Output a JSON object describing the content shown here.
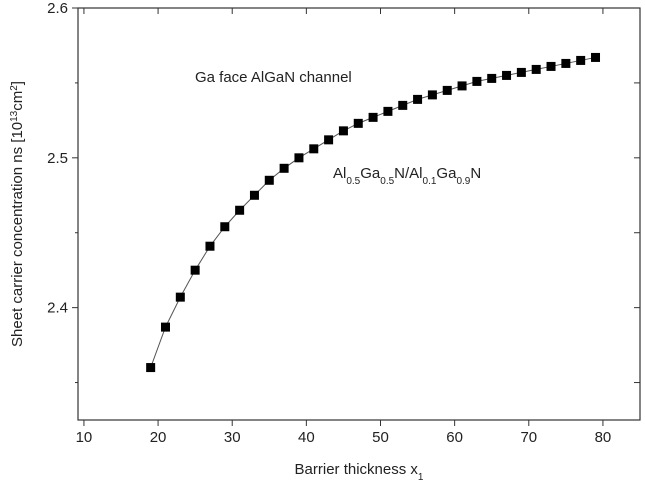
{
  "chart_data": {
    "type": "line",
    "xlabel": [
      "Barrier thickness x",
      "1"
    ],
    "ylabel": [
      "Sheet carrier concentration ns [10",
      "13",
      "cm",
      "2",
      "]"
    ],
    "annotations": [
      [
        "Ga face AlGaN channel"
      ],
      [
        "Al",
        "0.5",
        "Ga",
        "0.5",
        "N/Al",
        "0.1",
        "Ga",
        "0.9",
        "N"
      ]
    ],
    "x": [
      19,
      21,
      23,
      25,
      27,
      29,
      31,
      33,
      35,
      37,
      39,
      41,
      43,
      45,
      47,
      49,
      51,
      53,
      55,
      57,
      59,
      61,
      63,
      65,
      67,
      69,
      71,
      73,
      75,
      77,
      79
    ],
    "series": [
      {
        "color": "#000000",
        "marker": "square",
        "values": [
          2.36,
          2.387,
          2.407,
          2.425,
          2.441,
          2.454,
          2.465,
          2.475,
          2.485,
          2.493,
          2.5,
          2.506,
          2.512,
          2.518,
          2.523,
          2.527,
          2.531,
          2.535,
          2.539,
          2.542,
          2.545,
          2.548,
          2.551,
          2.553,
          2.555,
          2.557,
          2.559,
          2.561,
          2.563,
          2.565,
          2.567
        ]
      }
    ],
    "xlim": [
      9.2,
      85
    ],
    "xticks": [
      10,
      20,
      30,
      40,
      50,
      60,
      70,
      80
    ],
    "ylim": [
      2.325,
      2.6
    ],
    "yticks": [
      2.4,
      2.5,
      2.6
    ],
    "minor_yticks": [
      2.35,
      2.45,
      2.55
    ],
    "grid": false
  }
}
